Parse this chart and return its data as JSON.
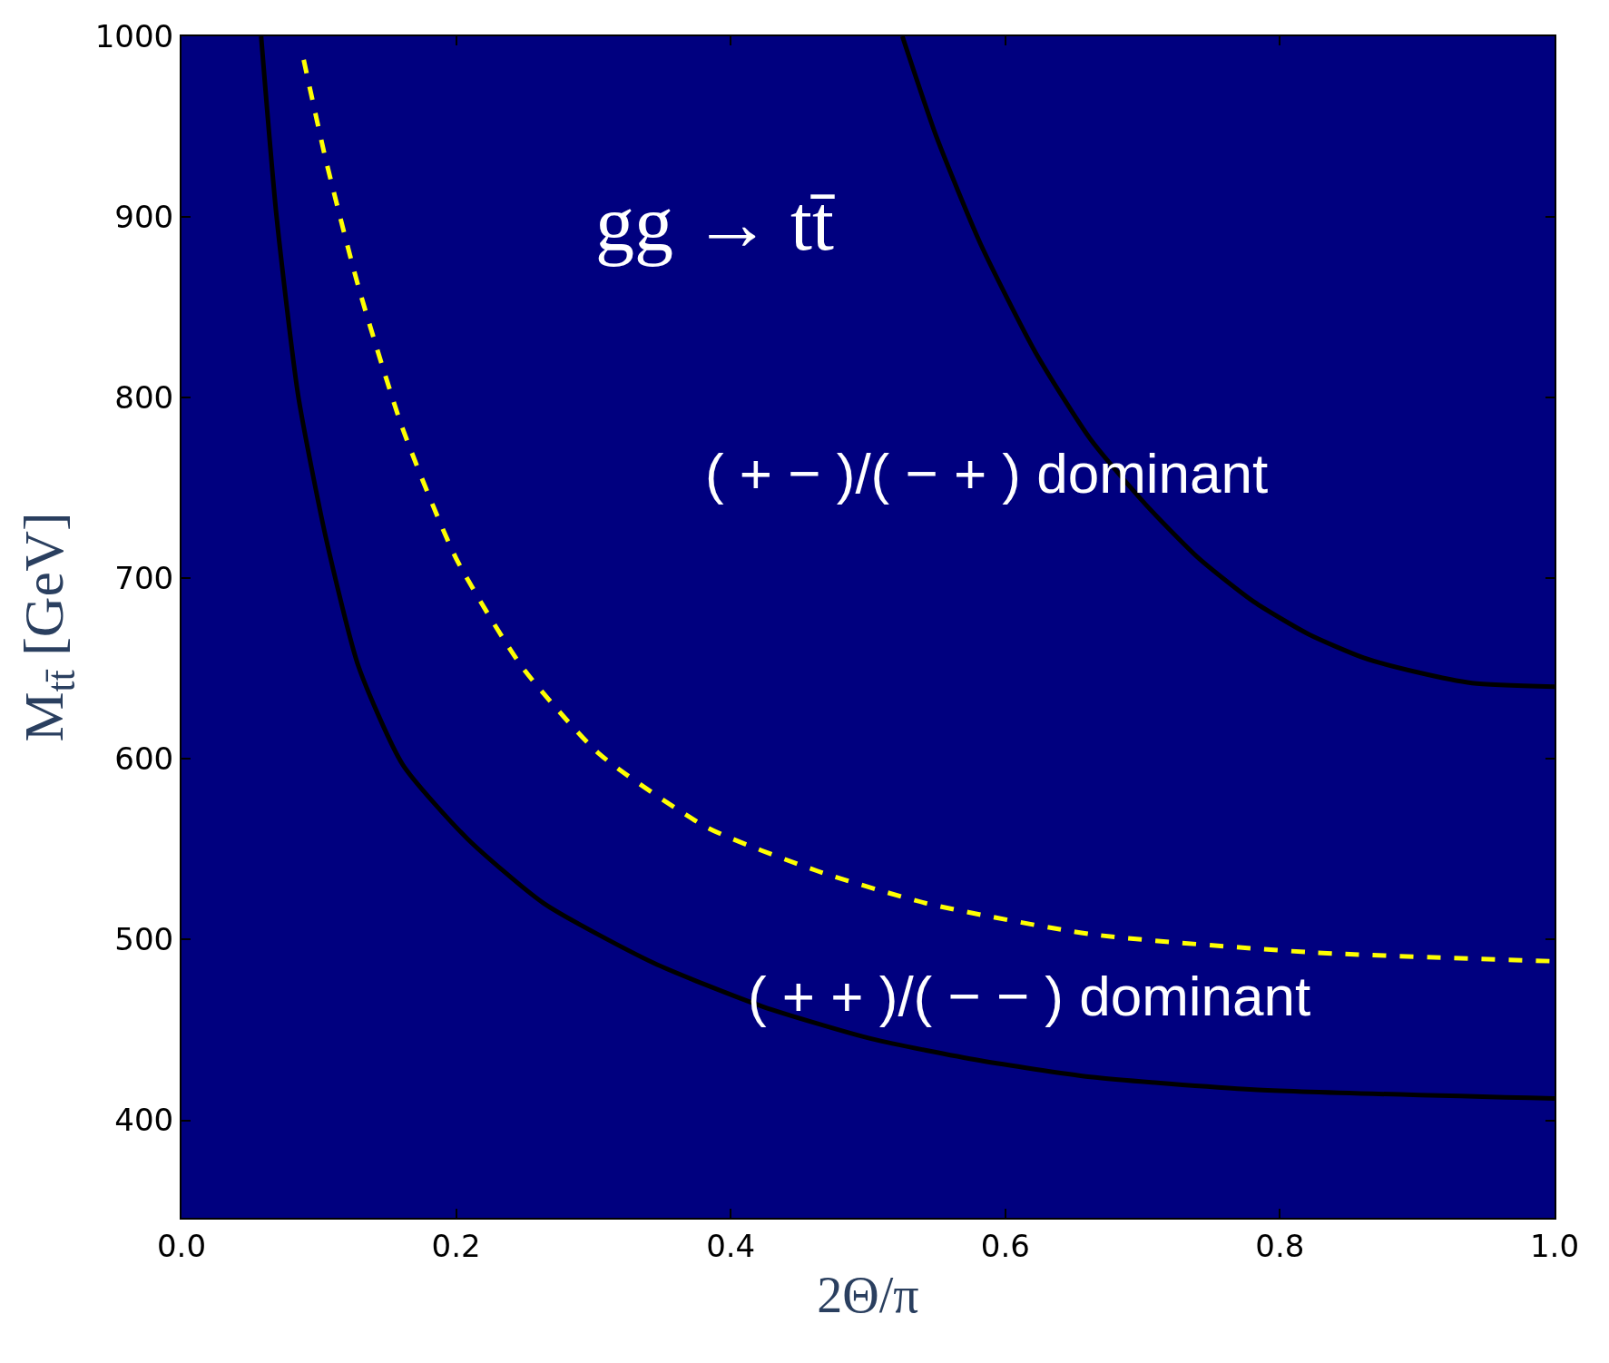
{
  "chart_data": {
    "type": "line",
    "xlabel": "2Θ/π",
    "ylabel": "M$_{tt̄}$ [GeV]",
    "xlim": [
      0,
      1
    ],
    "ylim": [
      346,
      1000
    ],
    "xticks": [
      {
        "value": 0,
        "label": "0.0"
      },
      {
        "value": 0.2,
        "label": "0.2"
      },
      {
        "value": 0.4,
        "label": "0.4"
      },
      {
        "value": 0.6,
        "label": "0.6"
      },
      {
        "value": 0.8,
        "label": "0.8"
      },
      {
        "value": 1,
        "label": "1.0"
      }
    ],
    "yticks": [
      400,
      500,
      600,
      700,
      800,
      900,
      1000
    ],
    "grid": false,
    "series": [
      {
        "color": "#000000",
        "line_style": "solid",
        "x": [
          0.058,
          0.069,
          0.085,
          0.105,
          0.129,
          0.161,
          0.208,
          0.264,
          0.344,
          0.423,
          0.503,
          0.582,
          0.662,
          0.781,
          1.0
        ],
        "values": [
          1000,
          902,
          801,
          723,
          651,
          597,
          556,
          520,
          487,
          463,
          445,
          433,
          424,
          417,
          412
        ]
      },
      {
        "color": "#000000",
        "line_style": "solid",
        "x": [
          0.525,
          0.55,
          0.582,
          0.622,
          0.662,
          0.702,
          0.741,
          0.781,
          0.821,
          0.861,
          0.9,
          0.94,
          1.0
        ],
        "values": [
          1000,
          944,
          885,
          825,
          777,
          741,
          711,
          687,
          669,
          656,
          648,
          642,
          640
        ]
      },
      {
        "color": "#ffff00",
        "line_style": "dashed",
        "x": [
          0.089,
          0.105,
          0.129,
          0.161,
          0.2,
          0.248,
          0.304,
          0.383,
          0.463,
          0.543,
          0.662,
          0.821,
          1.0
        ],
        "values": [
          987,
          932,
          861,
          783,
          711,
          651,
          603,
          562,
          538,
          520,
          503,
          493,
          488
        ]
      }
    ],
    "annotations": [
      "gg → tt̄",
      "( + − )/( − + ) dominant",
      "( + + )/( − − ) dominant"
    ]
  }
}
